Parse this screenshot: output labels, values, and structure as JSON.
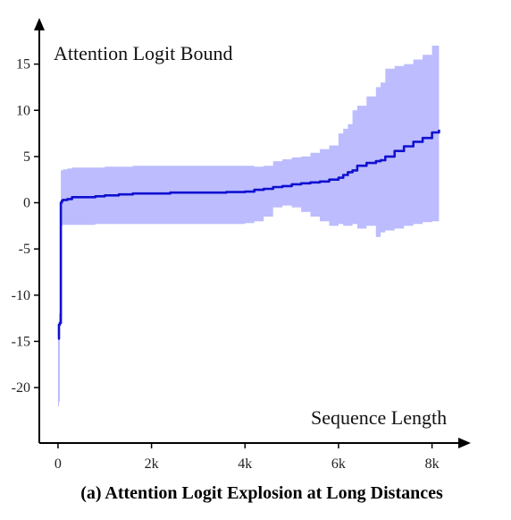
{
  "chart_data": {
    "type": "line",
    "title": "",
    "ylabel": "Attention Logit Bound",
    "xlabel": "Sequence Length",
    "caption": "(a) Attention Logit Explosion at Long Distances",
    "xlim": [
      -400,
      8600
    ],
    "ylim": [
      -26,
      20
    ],
    "x_ticks": [
      {
        "value": 0,
        "label": "0"
      },
      {
        "value": 2000,
        "label": "2k"
      },
      {
        "value": 4000,
        "label": "4k"
      },
      {
        "value": 6000,
        "label": "6k"
      },
      {
        "value": 8000,
        "label": "8k"
      }
    ],
    "y_ticks": [
      {
        "value": 15,
        "label": "15"
      },
      {
        "value": 10,
        "label": "10"
      },
      {
        "value": 5,
        "label": "5"
      },
      {
        "value": 0,
        "label": "0"
      },
      {
        "value": -5,
        "label": "-5"
      },
      {
        "value": -10,
        "label": "-10"
      },
      {
        "value": -15,
        "label": "-15"
      },
      {
        "value": -20,
        "label": "-20"
      }
    ],
    "grid": false,
    "colors": {
      "line": "#1010d0",
      "band": "#bcbcff",
      "axis": "#000000"
    },
    "series": [
      {
        "type": "line",
        "x": [
          0,
          20,
          40,
          60,
          80,
          100,
          200,
          300,
          500,
          800,
          1000,
          1300,
          1600,
          2000,
          2400,
          2800,
          3200,
          3600,
          4000,
          4200,
          4400,
          4600,
          4800,
          5000,
          5200,
          5400,
          5600,
          5800,
          6000,
          6100,
          6200,
          6300,
          6400,
          6600,
          6800,
          6900,
          7000,
          7200,
          7400,
          7600,
          7800,
          8000,
          8150
        ],
        "y": [
          -14.7,
          -13.2,
          -13.0,
          0.0,
          0.2,
          0.3,
          0.4,
          0.6,
          0.6,
          0.7,
          0.8,
          0.9,
          1.0,
          1.0,
          1.1,
          1.1,
          1.1,
          1.15,
          1.2,
          1.4,
          1.5,
          1.7,
          1.8,
          2.0,
          2.1,
          2.2,
          2.3,
          2.5,
          2.7,
          3.0,
          3.3,
          3.5,
          4.0,
          4.3,
          4.5,
          4.6,
          5.0,
          5.6,
          6.1,
          6.6,
          7.0,
          7.6,
          7.9
        ]
      },
      {
        "type": "band",
        "x": [
          0,
          20,
          40,
          60,
          100,
          200,
          300,
          500,
          800,
          1000,
          1300,
          1600,
          2000,
          2400,
          2800,
          3200,
          3600,
          4000,
          4200,
          4400,
          4600,
          4800,
          5000,
          5200,
          5400,
          5600,
          5800,
          6000,
          6100,
          6200,
          6300,
          6400,
          6600,
          6800,
          6900,
          7000,
          7200,
          7400,
          7600,
          7800,
          8000,
          8150
        ],
        "upper": [
          -14.0,
          -12.0,
          -10.0,
          3.5,
          3.6,
          3.7,
          3.8,
          3.8,
          3.8,
          3.9,
          3.9,
          4.0,
          4.0,
          4.0,
          4.0,
          4.0,
          4.0,
          4.0,
          3.9,
          4.0,
          4.5,
          4.7,
          4.9,
          5.0,
          5.4,
          5.8,
          6.2,
          7.5,
          8.0,
          8.5,
          10.0,
          10.5,
          11.5,
          12.5,
          13.0,
          14.5,
          14.8,
          15.0,
          15.5,
          16.0,
          17.0,
          17.5
        ],
        "lower": [
          -23.0,
          -22.0,
          -21.5,
          -2.5,
          -2.5,
          -2.4,
          -2.4,
          -2.4,
          -2.4,
          -2.3,
          -2.3,
          -2.3,
          -2.3,
          -2.3,
          -2.3,
          -2.3,
          -2.3,
          -2.3,
          -2.2,
          -2.0,
          -1.5,
          -0.5,
          -0.3,
          -0.5,
          -1.0,
          -1.5,
          -2.0,
          -2.5,
          -2.3,
          -2.5,
          -2.5,
          -2.3,
          -2.8,
          -2.5,
          -3.7,
          -3.2,
          -3.0,
          -2.8,
          -2.5,
          -2.3,
          -2.1,
          -2.0
        ]
      }
    ]
  }
}
